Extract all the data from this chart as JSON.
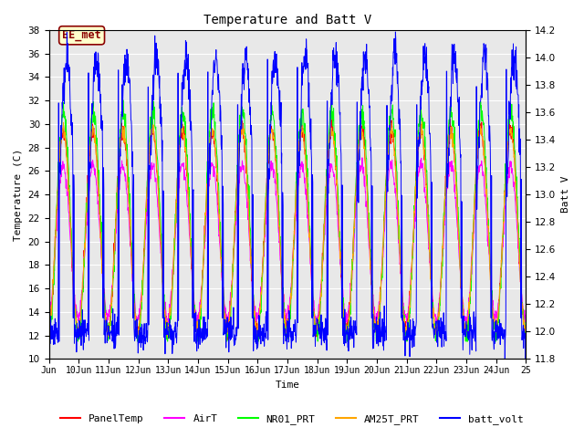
{
  "title": "Temperature and Batt V",
  "xlabel": "Time",
  "ylabel_left": "Temperature (C)",
  "ylabel_right": "Batt V",
  "xlim_start": 0,
  "xlim_end": 16,
  "ylim_left": [
    10,
    38
  ],
  "ylim_right": [
    11.8,
    14.2
  ],
  "yticks_left": [
    10,
    12,
    14,
    16,
    18,
    20,
    22,
    24,
    26,
    28,
    30,
    32,
    34,
    36,
    38
  ],
  "yticks_right": [
    11.8,
    12.0,
    12.2,
    12.4,
    12.6,
    12.8,
    13.0,
    13.2,
    13.4,
    13.6,
    13.8,
    14.0,
    14.2
  ],
  "xtick_labels": [
    "Jun",
    "10Jun",
    "11Jun",
    "12Jun",
    "13Jun",
    "14Jun",
    "15Jun",
    "16Jun",
    "17Jun",
    "18Jun",
    "19Jun",
    "20Jun",
    "21Jun",
    "22Jun",
    "23Jun",
    "24Jun",
    "25"
  ],
  "xtick_positions": [
    0,
    1,
    2,
    3,
    4,
    5,
    6,
    7,
    8,
    9,
    10,
    11,
    12,
    13,
    14,
    15,
    16
  ],
  "series_colors": {
    "PanelTemp": "#FF0000",
    "AirT": "#FF00FF",
    "NR01_PRT": "#00FF00",
    "AM25T_PRT": "#FFA500",
    "batt_volt": "#0000FF"
  },
  "legend_labels": [
    "PanelTemp",
    "AirT",
    "NR01_PRT",
    "AM25T_PRT",
    "batt_volt"
  ],
  "annotation_text": "EE_met",
  "plot_bg_color": "#E8E8E8",
  "grid_color": "white",
  "font_family": "monospace",
  "figsize": [
    6.4,
    4.8
  ],
  "dpi": 100
}
